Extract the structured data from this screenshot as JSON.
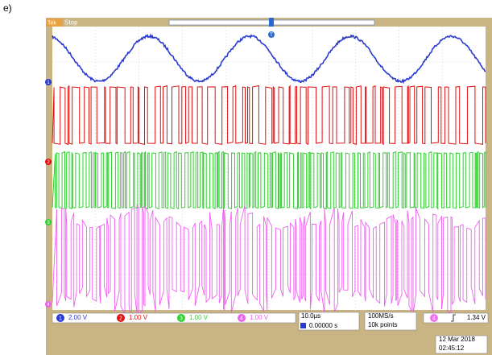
{
  "panel_label": "e)",
  "header": {
    "brand": "Tek",
    "state": "Stop",
    "trigger_marker": "T"
  },
  "channels": [
    {
      "number": "1",
      "scale": "2.00 V"
    },
    {
      "number": "2",
      "scale": "1.00 V"
    },
    {
      "number": "3",
      "scale": "1.00 V"
    },
    {
      "number": "4",
      "scale": "1.00 V"
    }
  ],
  "timebase": {
    "scale": "10.0µs",
    "position": "0.00000 s"
  },
  "acquisition": {
    "rate": "100MS/s",
    "length": "10k points"
  },
  "trigger": {
    "source": "4",
    "level": "1.34 V"
  },
  "clock": {
    "date": "12 Mar 2018",
    "time": "02:45:12"
  }
}
